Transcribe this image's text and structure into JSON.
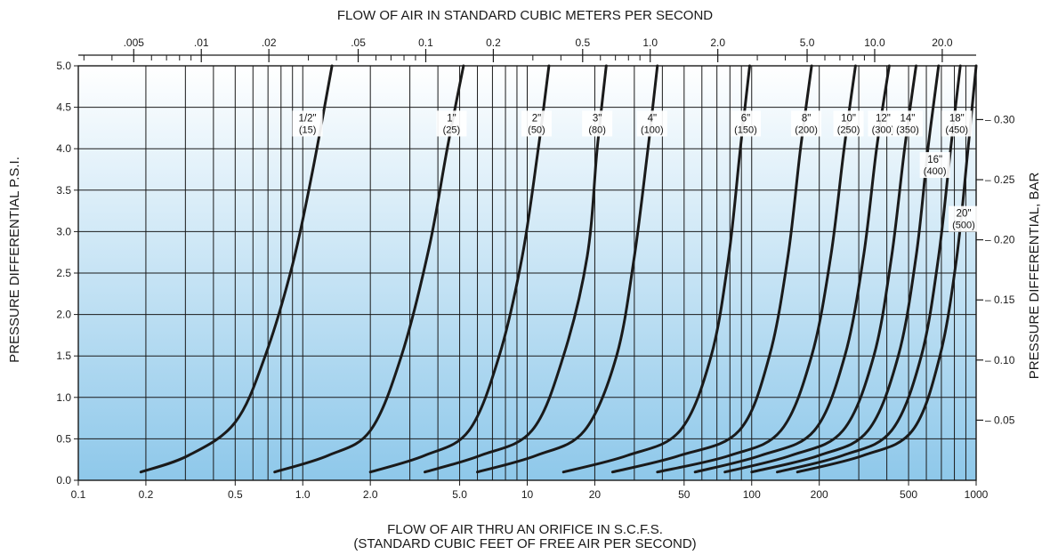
{
  "chart_data": {
    "type": "line",
    "top_title": "FLOW OF AIR IN STANDARD CUBIC METERS PER SECOND",
    "xlabel_line1": "FLOW OF AIR THRU AN ORIFICE IN S.C.F.S.",
    "xlabel_line2": "(STANDARD CUBIC FEET OF FREE AIR PER SECOND)",
    "ylabel_left": "PRESSURE DIFFERENTIAL P.S.I.",
    "ylabel_right": "PRESSURE DIFFERENTIAL, BAR",
    "x_scale": "log",
    "xlim": [
      0.1,
      1000
    ],
    "ylim": [
      0,
      5
    ],
    "grid": true,
    "background": {
      "top": "#ffffff",
      "bottom": "#8ec8ea"
    },
    "line_color": "#1a1a1a",
    "x_ticks": [
      {
        "value": 0.1,
        "label": "0.1"
      },
      {
        "value": 0.2,
        "label": "0.2"
      },
      {
        "value": 0.5,
        "label": "0.5"
      },
      {
        "value": 1,
        "label": "1.0"
      },
      {
        "value": 2,
        "label": "2.0"
      },
      {
        "value": 5,
        "label": "5.0"
      },
      {
        "value": 10,
        "label": "10"
      },
      {
        "value": 20,
        "label": "20"
      },
      {
        "value": 50,
        "label": "50"
      },
      {
        "value": 100,
        "label": "100"
      },
      {
        "value": 200,
        "label": "200"
      },
      {
        "value": 500,
        "label": "500"
      },
      {
        "value": 1000,
        "label": "1000"
      }
    ],
    "y_ticks": [
      {
        "value": 0,
        "label": "0.0"
      },
      {
        "value": 0.5,
        "label": "0.5"
      },
      {
        "value": 1,
        "label": "1.0"
      },
      {
        "value": 1.5,
        "label": "1.5"
      },
      {
        "value": 2,
        "label": "2.0"
      },
      {
        "value": 2.5,
        "label": "2.5"
      },
      {
        "value": 3,
        "label": "3.0"
      },
      {
        "value": 3.5,
        "label": "3.5"
      },
      {
        "value": 4,
        "label": "4.0"
      },
      {
        "value": 4.5,
        "label": "4.5"
      },
      {
        "value": 5,
        "label": "5.0"
      }
    ],
    "x2_ticks": [
      {
        "value": 0.005,
        "label": ".005"
      },
      {
        "value": 0.01,
        "label": ".01"
      },
      {
        "value": 0.02,
        "label": ".02"
      },
      {
        "value": 0.05,
        "label": ".05"
      },
      {
        "value": 0.1,
        "label": "0.1"
      },
      {
        "value": 0.2,
        "label": "0.2"
      },
      {
        "value": 0.5,
        "label": "0.5"
      },
      {
        "value": 1,
        "label": "1.0"
      },
      {
        "value": 2,
        "label": "2.0"
      },
      {
        "value": 5,
        "label": "5.0"
      },
      {
        "value": 10,
        "label": "10.0"
      },
      {
        "value": 20,
        "label": "20.0"
      }
    ],
    "x2_minor": [
      0.003,
      0.004,
      0.006,
      0.007,
      0.008,
      0.009,
      0.03,
      0.04,
      0.06,
      0.07,
      0.08,
      0.09,
      0.3,
      0.4,
      0.6,
      0.7,
      0.8,
      0.9,
      3,
      4,
      6,
      7,
      8,
      9,
      30
    ],
    "y2_ticks": [
      {
        "value": 0.05,
        "label": "0.05"
      },
      {
        "value": 0.1,
        "label": "0.10"
      },
      {
        "value": 0.15,
        "label": "0.15"
      },
      {
        "value": 0.2,
        "label": "0.20"
      },
      {
        "value": 0.25,
        "label": "0.25"
      },
      {
        "value": 0.3,
        "label": "0.30"
      }
    ],
    "series": [
      {
        "name": "1/2\"",
        "sub": "(15)",
        "x": [
          0.19,
          0.31,
          0.5,
          0.68,
          0.9,
          1.1,
          1.35
        ],
        "y": [
          0.1,
          0.3,
          0.7,
          1.5,
          2.6,
          3.7,
          5.0
        ]
      },
      {
        "name": "1\"",
        "sub": "(25)",
        "x": [
          0.75,
          1.3,
          2.0,
          2.75,
          3.65,
          4.4,
          5.2
        ],
        "y": [
          0.1,
          0.3,
          0.6,
          1.5,
          2.8,
          4.0,
          5.0
        ]
      },
      {
        "name": "2\"",
        "sub": "(50)",
        "x": [
          2.0,
          3.5,
          5.5,
          7.5,
          9.5,
          11.2,
          12.5
        ],
        "y": [
          0.1,
          0.3,
          0.6,
          1.5,
          2.7,
          4.0,
          5.0
        ]
      },
      {
        "name": "3\"",
        "sub": "(80)",
        "x": [
          3.5,
          6.2,
          10.5,
          14.5,
          18.5,
          20.5,
          22.5
        ],
        "y": [
          0.1,
          0.3,
          0.6,
          1.5,
          2.7,
          4.0,
          5.0
        ]
      },
      {
        "name": "4\"",
        "sub": "(100)",
        "x": [
          6.0,
          11.0,
          18.0,
          25.0,
          30.0,
          34.5,
          38.0
        ],
        "y": [
          0.1,
          0.3,
          0.6,
          1.5,
          2.7,
          4.0,
          5.0
        ]
      },
      {
        "name": "6\"",
        "sub": "(150)",
        "x": [
          14.5,
          28.0,
          48.0,
          66.0,
          79.0,
          89.0,
          98.0
        ],
        "y": [
          0.1,
          0.3,
          0.6,
          1.5,
          2.7,
          4.0,
          5.0
        ]
      },
      {
        "name": "8\"",
        "sub": "(200)",
        "x": [
          24.0,
          48.0,
          88.0,
          120.0,
          145.0,
          165.0,
          185.0
        ],
        "y": [
          0.1,
          0.3,
          0.6,
          1.5,
          2.7,
          4.0,
          5.0
        ]
      },
      {
        "name": "10\"",
        "sub": "(250)",
        "x": [
          38.0,
          80.0,
          135.0,
          185.0,
          225.0,
          258.0,
          290.0
        ],
        "y": [
          0.1,
          0.3,
          0.6,
          1.5,
          2.7,
          4.0,
          5.0
        ]
      },
      {
        "name": "12\"",
        "sub": "(300)",
        "x": [
          56.0,
          110.0,
          190.0,
          260.0,
          315.0,
          360.0,
          410.0
        ],
        "y": [
          0.1,
          0.3,
          0.6,
          1.5,
          2.7,
          4.0,
          5.0
        ]
      },
      {
        "name": "14\"",
        "sub": "(350)",
        "x": [
          76.0,
          150.0,
          255.0,
          350.0,
          420.0,
          480.0,
          540.0
        ],
        "y": [
          0.1,
          0.3,
          0.6,
          1.5,
          2.7,
          4.0,
          5.0
        ]
      },
      {
        "name": "16\"",
        "sub": "(400)",
        "x": [
          100.0,
          200.0,
          330.0,
          450.0,
          540.0,
          610.0,
          680.0
        ],
        "y": [
          0.1,
          0.3,
          0.6,
          1.5,
          2.7,
          4.0,
          5.0
        ]
      },
      {
        "name": "18\"",
        "sub": "(450)",
        "x": [
          130.0,
          255.0,
          420.0,
          570.0,
          680.0,
          770.0,
          850.0
        ],
        "y": [
          0.1,
          0.3,
          0.6,
          1.5,
          2.7,
          4.0,
          5.0
        ]
      },
      {
        "name": "20\"",
        "sub": "(500)",
        "x": [
          160.0,
          315.0,
          520.0,
          690.0,
          820.0,
          920.0,
          1000.0
        ],
        "y": [
          0.1,
          0.3,
          0.6,
          1.5,
          2.7,
          4.0,
          5.0
        ]
      }
    ],
    "labels": [
      {
        "series": 0,
        "x": 1.05,
        "y": 4.33
      },
      {
        "series": 1,
        "x": 4.6,
        "y": 4.33
      },
      {
        "series": 2,
        "x": 11.0,
        "y": 4.33
      },
      {
        "series": 3,
        "x": 20.5,
        "y": 4.33
      },
      {
        "series": 4,
        "x": 36.0,
        "y": 4.33
      },
      {
        "series": 5,
        "x": 94.0,
        "y": 4.33
      },
      {
        "series": 6,
        "x": 175.0,
        "y": 4.33
      },
      {
        "series": 7,
        "x": 270.0,
        "y": 4.33
      },
      {
        "series": 8,
        "x": 385.0,
        "y": 4.33
      },
      {
        "series": 9,
        "x": 495.0,
        "y": 4.33
      },
      {
        "series": 10,
        "x": 655.0,
        "y": 3.83
      },
      {
        "series": 11,
        "x": 820.0,
        "y": 4.33
      },
      {
        "series": 12,
        "x": 880.0,
        "y": 3.18
      }
    ]
  }
}
